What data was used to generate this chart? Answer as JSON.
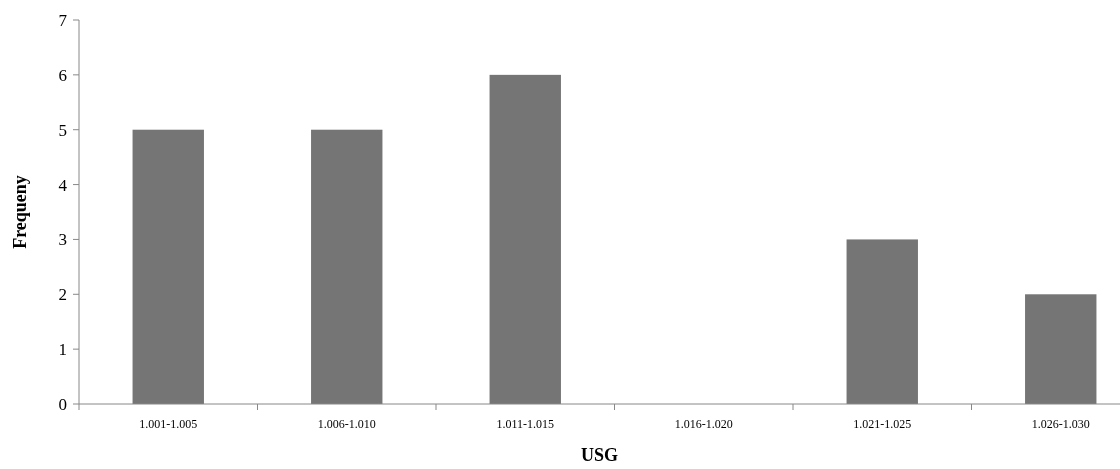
{
  "chart_data": {
    "type": "bar",
    "xlabel": "USG",
    "ylabel": "Frequeny",
    "categories": [
      "1.001-1.005",
      "1.006-1.010",
      "1.011-1.015",
      "1.016-1.020",
      "1.021-1.025",
      "1.026-1.030"
    ],
    "values": [
      5,
      5,
      6,
      0,
      3,
      2
    ],
    "color": "#757575",
    "ylim": [
      0,
      7
    ],
    "yticks": [
      0,
      1,
      2,
      3,
      4,
      5,
      6,
      7
    ],
    "grid": false
  }
}
